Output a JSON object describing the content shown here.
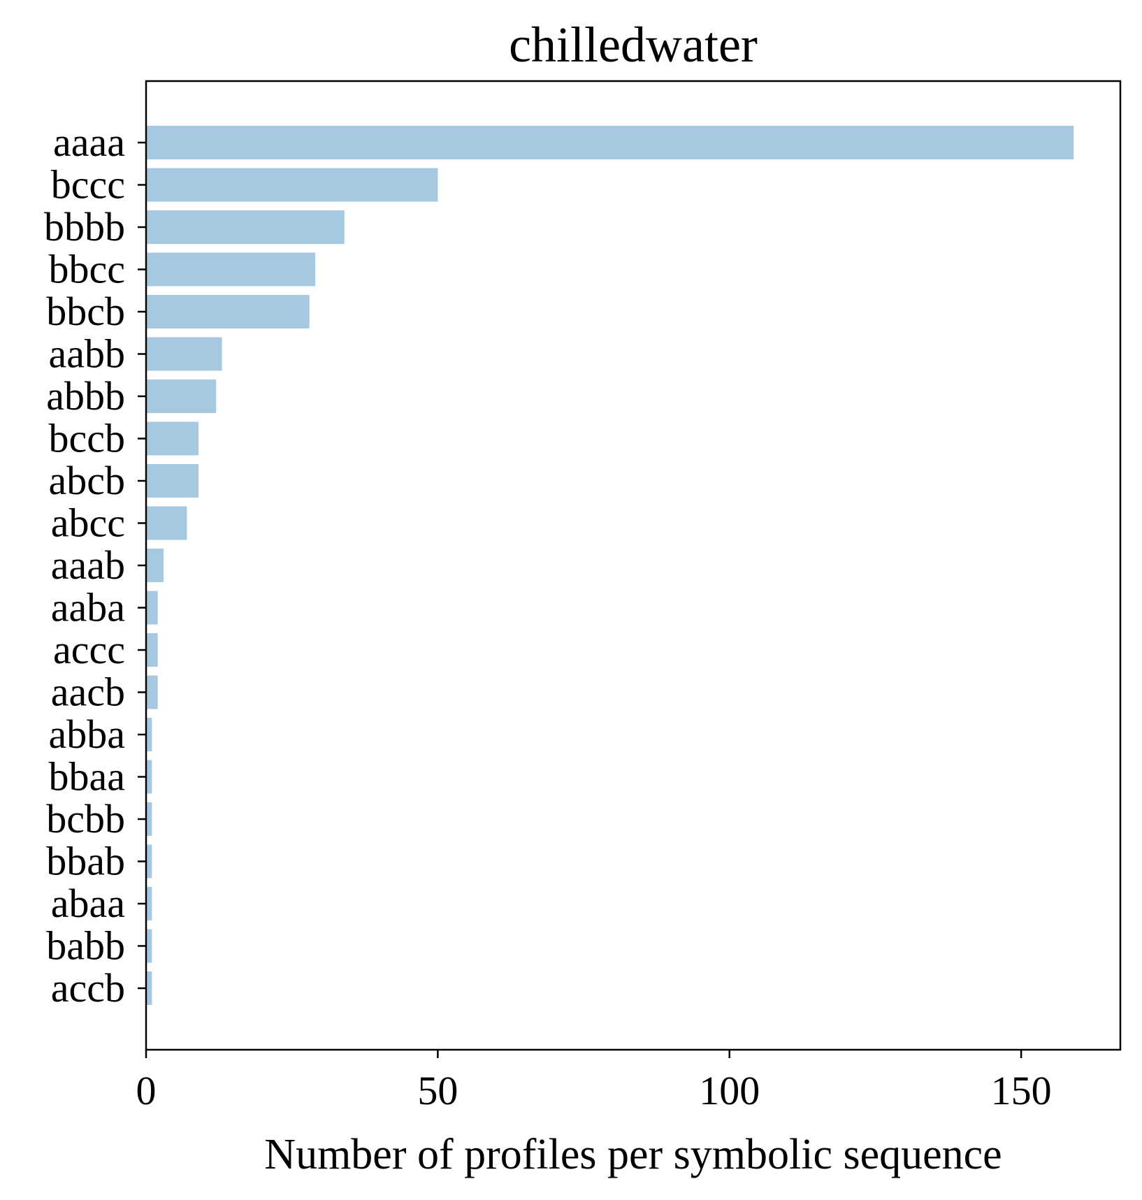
{
  "chart_data": {
    "type": "bar",
    "orientation": "horizontal",
    "title": "chilledwater",
    "xlabel": "Number of profiles per symbolic sequence",
    "ylabel": "",
    "categories": [
      "aaaa",
      "bccc",
      "bbbb",
      "bbcc",
      "bbcb",
      "aabb",
      "abbb",
      "bccb",
      "abcb",
      "abcc",
      "aaab",
      "aaba",
      "accc",
      "aacb",
      "abba",
      "bbaa",
      "bcbb",
      "bbab",
      "abaa",
      "babb",
      "accb"
    ],
    "values": [
      159,
      50,
      34,
      29,
      28,
      13,
      12,
      9,
      9,
      7,
      3,
      2,
      2,
      2,
      1,
      1,
      1,
      1,
      1,
      1,
      1
    ],
    "xlim": [
      0,
      167
    ],
    "xticks": [
      0,
      50,
      100,
      150
    ],
    "bar_color": "#a6c8e0",
    "grid": false,
    "legend": "none"
  }
}
